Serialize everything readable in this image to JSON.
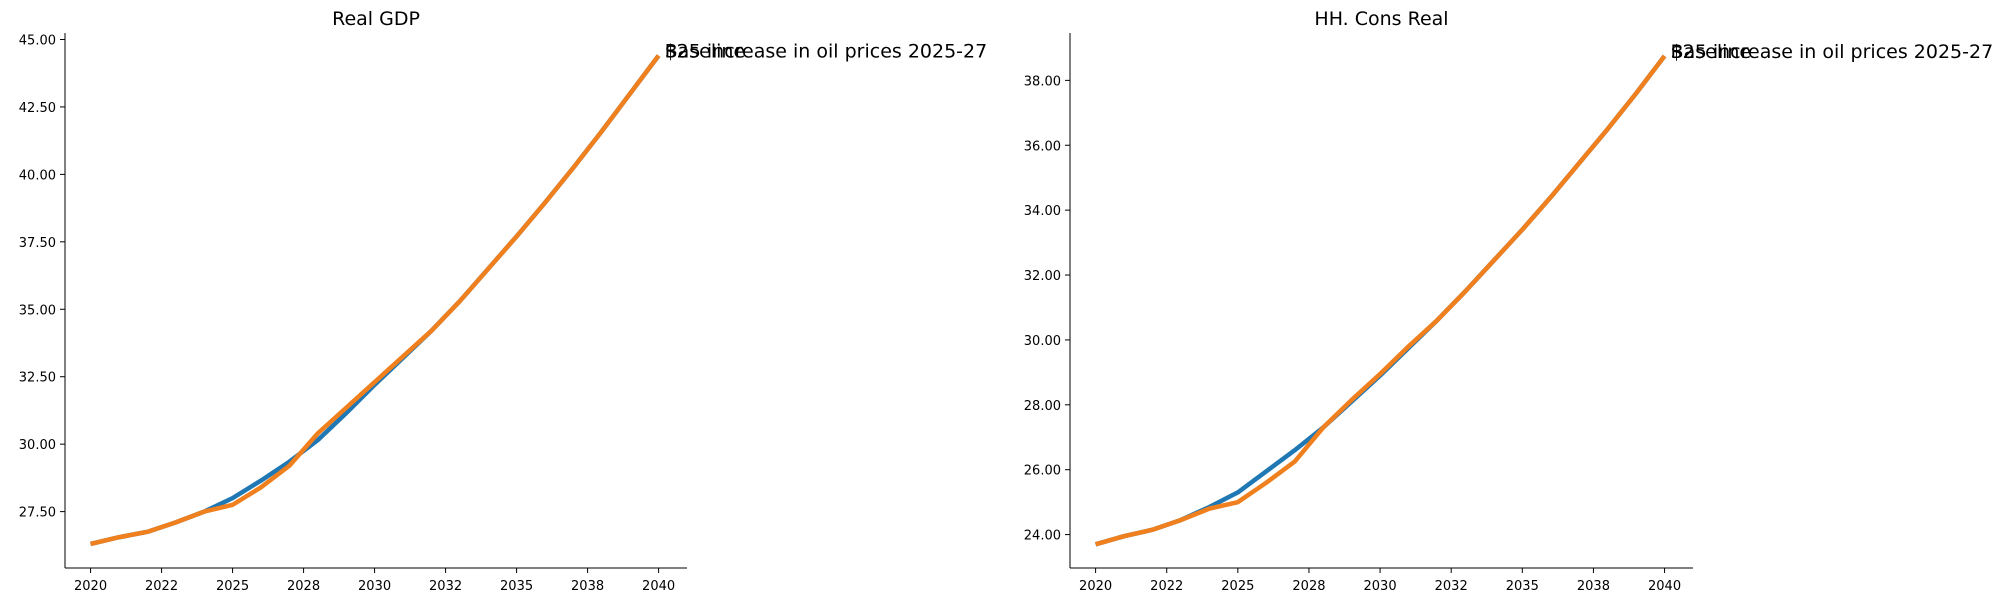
{
  "chart_data": [
    {
      "type": "line",
      "title": "Real GDP",
      "x": [
        2020,
        2021,
        2022,
        2023,
        2024,
        2025,
        2026,
        2027,
        2028,
        2029,
        2030,
        2031,
        2032,
        2033,
        2034,
        2035,
        2036,
        2037,
        2038,
        2039,
        2040
      ],
      "series": [
        {
          "name": "Baseline",
          "color": "#1f77b4",
          "values": [
            26.3,
            26.55,
            26.75,
            27.1,
            27.5,
            28.0,
            28.65,
            29.35,
            30.15,
            31.15,
            32.2,
            33.2,
            34.2,
            35.3,
            36.5,
            37.7,
            38.95,
            40.25,
            41.6,
            43.0,
            44.4
          ]
        },
        {
          "name": "$25 increase in oil prices 2025-27",
          "color": "#f07f1e",
          "values": [
            26.3,
            26.55,
            26.75,
            27.1,
            27.5,
            27.75,
            28.4,
            29.2,
            30.4,
            31.35,
            32.3,
            33.25,
            34.2,
            35.3,
            36.5,
            37.7,
            38.95,
            40.25,
            41.6,
            43.0,
            44.4
          ]
        }
      ],
      "xlim": [
        2019.1,
        2041.0
      ],
      "xticks": [
        2020,
        {
          "value": 2022.5,
          "label": "2022"
        },
        2025,
        {
          "value": 2027.5,
          "label": "2028"
        },
        2030,
        {
          "value": 2032.5,
          "label": "2032"
        },
        2035,
        {
          "value": 2037.5,
          "label": "2038"
        },
        2040
      ],
      "ylim": [
        25.41,
        45.24
      ],
      "yticks": [
        {
          "value": 27.5,
          "label": "27.50"
        },
        {
          "value": 30,
          "label": "30.00"
        },
        {
          "value": 32.5,
          "label": "32.50"
        },
        {
          "value": 35,
          "label": "35.00"
        },
        {
          "value": 37.5,
          "label": "37.50"
        },
        {
          "value": 40,
          "label": "40.00"
        },
        {
          "value": 42.5,
          "label": "42.50"
        },
        {
          "value": 45,
          "label": "45.00"
        }
      ],
      "grid": false
    },
    {
      "type": "line",
      "title": "HH. Cons Real",
      "x": [
        2020,
        2021,
        2022,
        2023,
        2024,
        2025,
        2026,
        2027,
        2028,
        2029,
        2030,
        2031,
        2032,
        2033,
        2034,
        2035,
        2036,
        2037,
        2038,
        2039,
        2040
      ],
      "series": [
        {
          "name": "Baseline",
          "color": "#1f77b4",
          "values": [
            23.7,
            23.95,
            24.15,
            24.45,
            24.85,
            25.3,
            25.95,
            26.6,
            27.3,
            28.1,
            28.9,
            29.75,
            30.6,
            31.5,
            32.45,
            33.4,
            34.4,
            35.45,
            36.5,
            37.6,
            38.75
          ]
        },
        {
          "name": "$25 increase in oil prices 2025-27",
          "color": "#f07f1e",
          "values": [
            23.7,
            23.95,
            24.15,
            24.45,
            24.8,
            25.0,
            25.6,
            26.25,
            27.3,
            28.15,
            28.95,
            29.8,
            30.6,
            31.5,
            32.45,
            33.4,
            34.4,
            35.45,
            36.5,
            37.6,
            38.75
          ]
        }
      ],
      "xlim": [
        2019.1,
        2041.0
      ],
      "xticks": [
        2020,
        {
          "value": 2022.5,
          "label": "2022"
        },
        2025,
        {
          "value": 2027.5,
          "label": "2028"
        },
        2030,
        {
          "value": 2032.5,
          "label": "2032"
        },
        2035,
        {
          "value": 2037.5,
          "label": "2038"
        },
        2040
      ],
      "ylim": [
        22.97,
        39.46
      ],
      "yticks": [
        {
          "value": 24,
          "label": "24.00"
        },
        {
          "value": 26,
          "label": "26.00"
        },
        {
          "value": 28,
          "label": "28.00"
        },
        {
          "value": 30,
          "label": "30.00"
        },
        {
          "value": 32,
          "label": "32.00"
        },
        {
          "value": 34,
          "label": "34.00"
        },
        {
          "value": 36,
          "label": "36.00"
        },
        {
          "value": 38,
          "label": "38.00"
        }
      ],
      "grid": false
    }
  ]
}
